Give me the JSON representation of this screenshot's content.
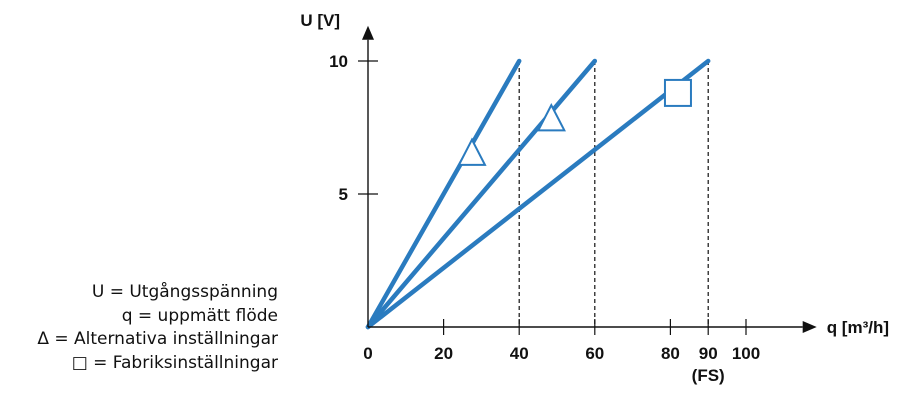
{
  "chart_data": {
    "type": "line",
    "x_axis": {
      "label": "q [m³/h]",
      "ticks": [
        0,
        20,
        40,
        60,
        80,
        90,
        100
      ],
      "fs_label": "(FS)",
      "range": [
        0,
        115
      ]
    },
    "y_axis": {
      "label": "U [V]",
      "ticks": [
        5,
        10
      ],
      "range": [
        0,
        10.8
      ]
    },
    "series": [
      {
        "marker": "triangle",
        "points": [
          [
            0,
            0
          ],
          [
            40,
            10
          ]
        ],
        "marker_at": [
          27.5,
          6.5
        ]
      },
      {
        "marker": "triangle",
        "points": [
          [
            0,
            0
          ],
          [
            60,
            10
          ]
        ],
        "marker_at": [
          48.5,
          7.8
        ]
      },
      {
        "marker": "square",
        "points": [
          [
            0,
            0
          ],
          [
            90,
            10
          ]
        ],
        "marker_at": [
          82,
          8.8
        ]
      }
    ],
    "reference_lines_x": [
      40,
      60,
      90
    ],
    "colors": {
      "line": "#2a7bbf",
      "axis": "#111111"
    }
  },
  "legend": {
    "items": [
      "U = Utgångsspänning",
      "q = uppmätt flöde",
      "Δ = Alternativa inställningar",
      "□ = Fabriksinställningar"
    ]
  }
}
